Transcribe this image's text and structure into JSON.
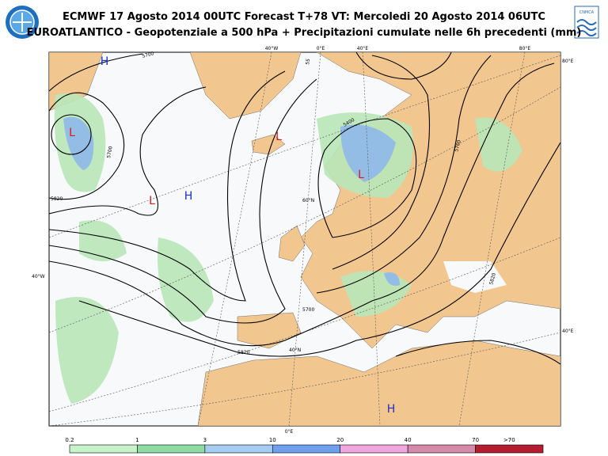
{
  "header": {
    "title": "ECMWF 17 Agosto 2014 00UTC Forecast T+78 VT: Mercoledi 20 Agosto 2014 06UTC",
    "subtitle": "EUROATLANTICO - Geopotenziale a 500 hPa + Precipitazioni cumulate nelle 6h precedenti (mm)",
    "logo_text": "CNMCA"
  },
  "map": {
    "pressure_centers": [
      "H",
      "L",
      "L",
      "H",
      "L",
      "L",
      "H"
    ],
    "contour_labels": [
      "5700",
      "5700",
      "5820",
      "5400",
      "5700",
      "5820",
      "5700",
      "5820",
      "55"
    ],
    "graticule_labels": [
      "40°W",
      "0°E",
      "40°E",
      "80°E",
      "80°E",
      "40°W",
      "40°E",
      "0°E",
      "40°N",
      "60°N"
    ]
  },
  "legend": {
    "items": [
      {
        "label": "0.2",
        "color": "#c8f2c8"
      },
      {
        "label": "1",
        "color": "#8edca2"
      },
      {
        "label": "3",
        "color": "#a6ccf2"
      },
      {
        "label": "10",
        "color": "#6fa0ee"
      },
      {
        "label": "20",
        "color": "#f0a6de"
      },
      {
        "label": "40",
        "color": "#d48aa8"
      },
      {
        "label": "70",
        "color": "#b41c30"
      }
    ],
    "last_label": ">70"
  }
}
